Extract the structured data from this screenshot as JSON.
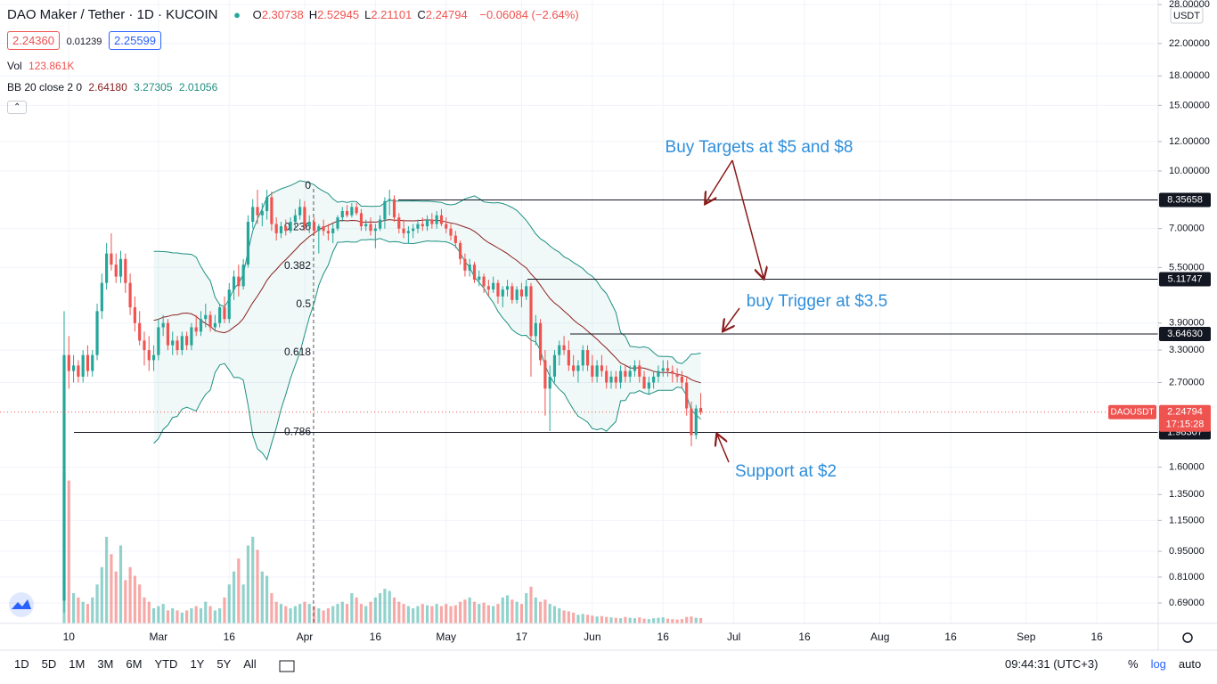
{
  "header": {
    "symbol": "DAO Maker / Tether · 1D · KUCOIN",
    "ohlc": [
      {
        "key": "O",
        "value": "2.30738"
      },
      {
        "key": "H",
        "value": "2.52945"
      },
      {
        "key": "L",
        "value": "2.21101"
      },
      {
        "key": "C",
        "value": "2.24794"
      }
    ],
    "change": "−0.06084 (−2.64%)",
    "quote": {
      "bid": "2.24360",
      "spread": "0.01239",
      "ask": "2.25599"
    },
    "volume": {
      "label": "Vol",
      "value": "123.861K"
    },
    "bb": {
      "label": "BB 20 close 2 0",
      "values": [
        "2.64180",
        "3.27305",
        "2.01056"
      ]
    }
  },
  "chart_data": {
    "type": "candlestick",
    "log": true,
    "grid": true,
    "up_color": "#26a69a",
    "down_color": "#ef5350",
    "currency": "USDT",
    "xlim": [
      -13.6,
      232
    ],
    "ylim": [
      0.608,
      28.8
    ],
    "xticks": [
      {
        "value": 1,
        "label": "10"
      },
      {
        "value": 20,
        "label": "Mar"
      },
      {
        "value": 35,
        "label": "16"
      },
      {
        "value": 51,
        "label": "Apr"
      },
      {
        "value": 66,
        "label": "16"
      },
      {
        "value": 81,
        "label": "May"
      },
      {
        "value": 97,
        "label": "17"
      },
      {
        "value": 112,
        "label": "Jun"
      },
      {
        "value": 127,
        "label": "16"
      },
      {
        "value": 142,
        "label": "Jul"
      },
      {
        "value": 157,
        "label": "16"
      },
      {
        "value": 173,
        "label": "Aug"
      },
      {
        "value": 188,
        "label": "16"
      },
      {
        "value": 204,
        "label": "Sep"
      },
      {
        "value": 219,
        "label": "16"
      }
    ],
    "yticks": [
      {
        "value": 28,
        "label": "28.00000"
      },
      {
        "value": 22,
        "label": "22.00000"
      },
      {
        "value": 18,
        "label": "18.00000"
      },
      {
        "value": 15,
        "label": "15.00000"
      },
      {
        "value": 12,
        "label": "12.00000"
      },
      {
        "value": 10,
        "label": "10.00000"
      },
      {
        "value": 7,
        "label": "7.00000"
      },
      {
        "value": 5.5,
        "label": "5.50000"
      },
      {
        "value": 3.9,
        "label": "3.90000"
      },
      {
        "value": 3.3,
        "label": "3.30000"
      },
      {
        "value": 2.7,
        "label": "2.70000"
      },
      {
        "value": 1.6,
        "label": "1.60000"
      },
      {
        "value": 1.35,
        "label": "1.35000"
      },
      {
        "value": 1.15,
        "label": "1.15000"
      },
      {
        "value": 0.95,
        "label": "0.95000"
      },
      {
        "value": 0.81,
        "label": "0.81000"
      },
      {
        "value": 0.69,
        "label": "0.69000"
      }
    ],
    "hlines": [
      8.35658,
      5.11747,
      {
        "value": 3.6463,
        "label": "3.64630"
      },
      1.98307
    ],
    "last": {
      "symbol": "DAOUSDT",
      "value": 2.24794,
      "countdown": "17:15:28"
    },
    "fib": [
      {
        "level": 0,
        "price": 8.95
      },
      {
        "level": 0.236,
        "price": 6.93
      },
      {
        "level": 0.382,
        "price": 5.46
      },
      {
        "level": 0.5,
        "price": 4.3
      },
      {
        "level": 0.618,
        "price": 3.2
      },
      {
        "level": 0.786,
        "price": 1.95
      }
    ],
    "bb": {
      "length": 20,
      "mult": 2
    },
    "annotations": [
      "Buy Targets at $5 and $8",
      "buy Trigger at $3.5",
      "Support at $2"
    ],
    "volume_lim": [
      0,
      7200
    ],
    "ohlc": [
      [
        0.7,
        4.2,
        0.65,
        3.2
      ],
      [
        3.2,
        3.6,
        2.6,
        2.9
      ],
      [
        2.9,
        3.2,
        2.7,
        3.0
      ],
      [
        3.0,
        3.1,
        2.7,
        2.8
      ],
      [
        2.8,
        3.3,
        2.7,
        3.2
      ],
      [
        3.2,
        3.4,
        2.8,
        2.9
      ],
      [
        2.9,
        3.3,
        2.8,
        3.2
      ],
      [
        3.2,
        4.4,
        3.1,
        4.2
      ],
      [
        4.2,
        5.3,
        4.0,
        5.0
      ],
      [
        5.0,
        6.4,
        4.8,
        6.0
      ],
      [
        6.0,
        6.8,
        5.4,
        5.6
      ],
      [
        5.6,
        6.0,
        5.0,
        5.2
      ],
      [
        5.2,
        6.1,
        5.0,
        5.8
      ],
      [
        5.8,
        6.0,
        4.7,
        5.0
      ],
      [
        5.0,
        5.3,
        4.1,
        4.3
      ],
      [
        4.3,
        4.6,
        3.7,
        3.9
      ],
      [
        3.9,
        4.2,
        3.4,
        3.5
      ],
      [
        3.5,
        3.7,
        3.0,
        3.3
      ],
      [
        3.3,
        3.6,
        2.9,
        3.1
      ],
      [
        3.1,
        3.4,
        2.9,
        3.2
      ],
      [
        3.2,
        4.0,
        3.1,
        3.8
      ],
      [
        3.8,
        4.1,
        3.6,
        3.9
      ],
      [
        3.9,
        4.0,
        3.3,
        3.4
      ],
      [
        3.4,
        3.7,
        3.2,
        3.5
      ],
      [
        3.5,
        3.6,
        3.2,
        3.3
      ],
      [
        3.3,
        3.7,
        3.2,
        3.6
      ],
      [
        3.6,
        3.7,
        3.3,
        3.4
      ],
      [
        3.4,
        3.9,
        3.3,
        3.8
      ],
      [
        3.8,
        4.1,
        3.6,
        3.7
      ],
      [
        3.7,
        4.2,
        3.6,
        4.0
      ],
      [
        4.0,
        4.4,
        3.8,
        4.1
      ],
      [
        4.1,
        4.2,
        3.7,
        3.8
      ],
      [
        3.8,
        4.1,
        3.7,
        3.9
      ],
      [
        3.9,
        4.4,
        3.8,
        4.3
      ],
      [
        4.3,
        4.6,
        3.9,
        4.0
      ],
      [
        4.0,
        5.0,
        3.9,
        4.8
      ],
      [
        4.8,
        5.4,
        4.5,
        5.2
      ],
      [
        5.2,
        5.6,
        4.6,
        4.9
      ],
      [
        4.9,
        5.8,
        4.8,
        5.6
      ],
      [
        5.6,
        7.6,
        5.5,
        7.3
      ],
      [
        7.3,
        8.4,
        7.0,
        8.0
      ],
      [
        8.0,
        8.9,
        7.2,
        7.6
      ],
      [
        7.6,
        8.2,
        7.1,
        7.8
      ],
      [
        7.8,
        8.9,
        7.4,
        8.5
      ],
      [
        8.5,
        8.8,
        6.9,
        7.2
      ],
      [
        7.2,
        7.5,
        6.5,
        6.8
      ],
      [
        6.8,
        7.3,
        6.6,
        7.1
      ],
      [
        7.1,
        7.4,
        6.7,
        6.9
      ],
      [
        6.9,
        7.5,
        6.8,
        7.3
      ],
      [
        7.3,
        7.9,
        7.0,
        7.6
      ],
      [
        7.6,
        8.4,
        7.4,
        8.0
      ],
      [
        8.0,
        8.3,
        6.9,
        7.1
      ],
      [
        7.1,
        7.6,
        6.8,
        7.3
      ],
      [
        7.3,
        7.5,
        6.7,
        6.9
      ],
      [
        6.9,
        7.2,
        6.0,
        7.1
      ],
      [
        7.1,
        7.4,
        6.7,
        6.9
      ],
      [
        6.9,
        7.2,
        6.5,
        6.8
      ],
      [
        6.8,
        7.2,
        6.4,
        7.0
      ],
      [
        7.0,
        7.6,
        6.9,
        7.5
      ],
      [
        7.5,
        8.0,
        7.3,
        7.8
      ],
      [
        7.8,
        8.1,
        7.5,
        7.6
      ],
      [
        7.6,
        8.2,
        7.5,
        8.0
      ],
      [
        8.0,
        8.2,
        7.6,
        7.7
      ],
      [
        7.7,
        7.9,
        6.9,
        7.1
      ],
      [
        7.1,
        7.4,
        6.9,
        7.2
      ],
      [
        7.2,
        7.5,
        6.7,
        6.9
      ],
      [
        6.9,
        7.2,
        6.2,
        7.0
      ],
      [
        7.0,
        7.6,
        6.9,
        7.4
      ],
      [
        7.4,
        8.5,
        7.0,
        8.3
      ],
      [
        8.3,
        8.9,
        7.6,
        8.4
      ],
      [
        8.4,
        8.6,
        7.3,
        7.5
      ],
      [
        7.5,
        7.7,
        6.8,
        7.0
      ],
      [
        7.0,
        7.4,
        6.6,
        6.8
      ],
      [
        6.8,
        7.1,
        6.4,
        6.9
      ],
      [
        6.9,
        7.2,
        6.6,
        7.0
      ],
      [
        7.0,
        7.4,
        6.8,
        7.2
      ],
      [
        7.2,
        7.5,
        6.9,
        7.1
      ],
      [
        7.1,
        7.6,
        6.9,
        7.4
      ],
      [
        7.4,
        7.7,
        7.0,
        7.2
      ],
      [
        7.2,
        7.8,
        7.0,
        7.6
      ],
      [
        7.6,
        7.9,
        7.1,
        7.2
      ],
      [
        7.2,
        7.5,
        6.8,
        7.0
      ],
      [
        7.0,
        7.2,
        6.5,
        6.7
      ],
      [
        6.7,
        6.9,
        6.2,
        6.4
      ],
      [
        6.4,
        6.5,
        5.6,
        5.8
      ],
      [
        5.8,
        6.0,
        5.2,
        5.4
      ],
      [
        5.4,
        5.8,
        5.2,
        5.6
      ],
      [
        5.6,
        5.7,
        5.0,
        5.1
      ],
      [
        5.1,
        5.4,
        4.9,
        5.2
      ],
      [
        5.2,
        5.3,
        4.7,
        4.9
      ],
      [
        4.9,
        5.1,
        4.6,
        4.8
      ],
      [
        4.8,
        5.2,
        4.7,
        5.0
      ],
      [
        5.0,
        5.1,
        4.4,
        4.6
      ],
      [
        4.6,
        4.9,
        4.3,
        4.8
      ],
      [
        4.8,
        5.1,
        4.6,
        4.9
      ],
      [
        4.9,
        5.0,
        4.4,
        4.5
      ],
      [
        4.5,
        4.9,
        4.4,
        4.8
      ],
      [
        4.8,
        5.0,
        4.3,
        4.6
      ],
      [
        4.6,
        5.1,
        4.5,
        4.9
      ],
      [
        4.9,
        5.0,
        2.8,
        3.6
      ],
      [
        3.6,
        4.1,
        3.4,
        3.9
      ],
      [
        3.9,
        4.0,
        3.0,
        3.1
      ],
      [
        3.1,
        3.3,
        2.2,
        2.6
      ],
      [
        2.6,
        3.0,
        2.0,
        2.8
      ],
      [
        2.8,
        3.3,
        2.7,
        3.2
      ],
      [
        3.2,
        3.5,
        3.0,
        3.4
      ],
      [
        3.4,
        3.6,
        3.2,
        3.3
      ],
      [
        3.3,
        3.5,
        2.9,
        3.0
      ],
      [
        3.0,
        3.2,
        2.8,
        2.9
      ],
      [
        2.9,
        3.1,
        2.7,
        3.0
      ],
      [
        3.0,
        3.4,
        2.9,
        3.3
      ],
      [
        3.3,
        3.4,
        2.9,
        3.0
      ],
      [
        3.0,
        3.2,
        2.7,
        2.8
      ],
      [
        2.8,
        3.1,
        2.7,
        3.0
      ],
      [
        3.0,
        3.2,
        2.8,
        2.9
      ],
      [
        2.9,
        3.0,
        2.6,
        2.7
      ],
      [
        2.7,
        2.9,
        2.6,
        2.8
      ],
      [
        2.8,
        2.9,
        2.6,
        2.7
      ],
      [
        2.7,
        3.0,
        2.6,
        2.9
      ],
      [
        2.9,
        3.0,
        2.7,
        2.8
      ],
      [
        2.8,
        3.0,
        2.7,
        2.9
      ],
      [
        2.9,
        3.1,
        2.8,
        3.0
      ],
      [
        3.0,
        3.1,
        2.7,
        2.8
      ],
      [
        2.8,
        2.9,
        2.6,
        2.6
      ],
      [
        2.6,
        2.8,
        2.5,
        2.7
      ],
      [
        2.7,
        2.9,
        2.6,
        2.8
      ],
      [
        2.8,
        3.0,
        2.7,
        2.9
      ],
      [
        2.9,
        3.1,
        2.8,
        2.95
      ],
      [
        2.95,
        3.1,
        2.8,
        2.9
      ],
      [
        2.9,
        3.0,
        2.7,
        2.85
      ],
      [
        2.85,
        2.95,
        2.7,
        2.8
      ],
      [
        2.8,
        2.9,
        2.6,
        2.7
      ],
      [
        2.7,
        2.8,
        2.2,
        2.3
      ],
      [
        2.3,
        2.4,
        1.82,
        1.95
      ],
      [
        1.95,
        2.35,
        1.9,
        2.3
      ],
      [
        2.30738,
        2.52945,
        2.21101,
        2.24794
      ]
    ],
    "volume": [
      3500,
      3300,
      700,
      600,
      500,
      450,
      600,
      900,
      1300,
      2000,
      1600,
      1200,
      1800,
      1000,
      1300,
      1100,
      900,
      600,
      500,
      350,
      400,
      450,
      300,
      350,
      300,
      250,
      300,
      350,
      400,
      350,
      500,
      400,
      300,
      350,
      600,
      900,
      1200,
      1500,
      900,
      1800,
      2000,
      1700,
      1200,
      1100,
      700,
      500,
      450,
      400,
      350,
      400,
      450,
      500,
      450,
      400,
      350,
      300,
      350,
      400,
      450,
      500,
      450,
      700,
      600,
      450,
      400,
      500,
      600,
      700,
      800,
      750,
      600,
      500,
      450,
      400,
      350,
      400,
      450,
      420,
      400,
      450,
      400,
      450,
      400,
      420,
      500,
      550,
      600,
      500,
      450,
      480,
      420,
      400,
      450,
      600,
      650,
      550,
      500,
      450,
      700,
      850,
      600,
      500,
      550,
      450,
      400,
      350,
      300,
      280,
      250,
      200,
      220,
      200,
      180,
      160,
      170,
      150,
      140,
      130,
      120,
      150,
      130,
      120,
      140,
      110,
      100,
      120,
      130,
      140,
      110,
      100,
      90,
      100,
      150,
      160,
      130,
      123.861
    ]
  },
  "toolbar": {
    "ranges": [
      "1D",
      "5D",
      "1M",
      "3M",
      "6M",
      "YTD",
      "1Y",
      "5Y",
      "All"
    ],
    "clock": "09:44:31 (UTC+3)",
    "options": [
      "%",
      "log",
      "auto"
    ]
  }
}
